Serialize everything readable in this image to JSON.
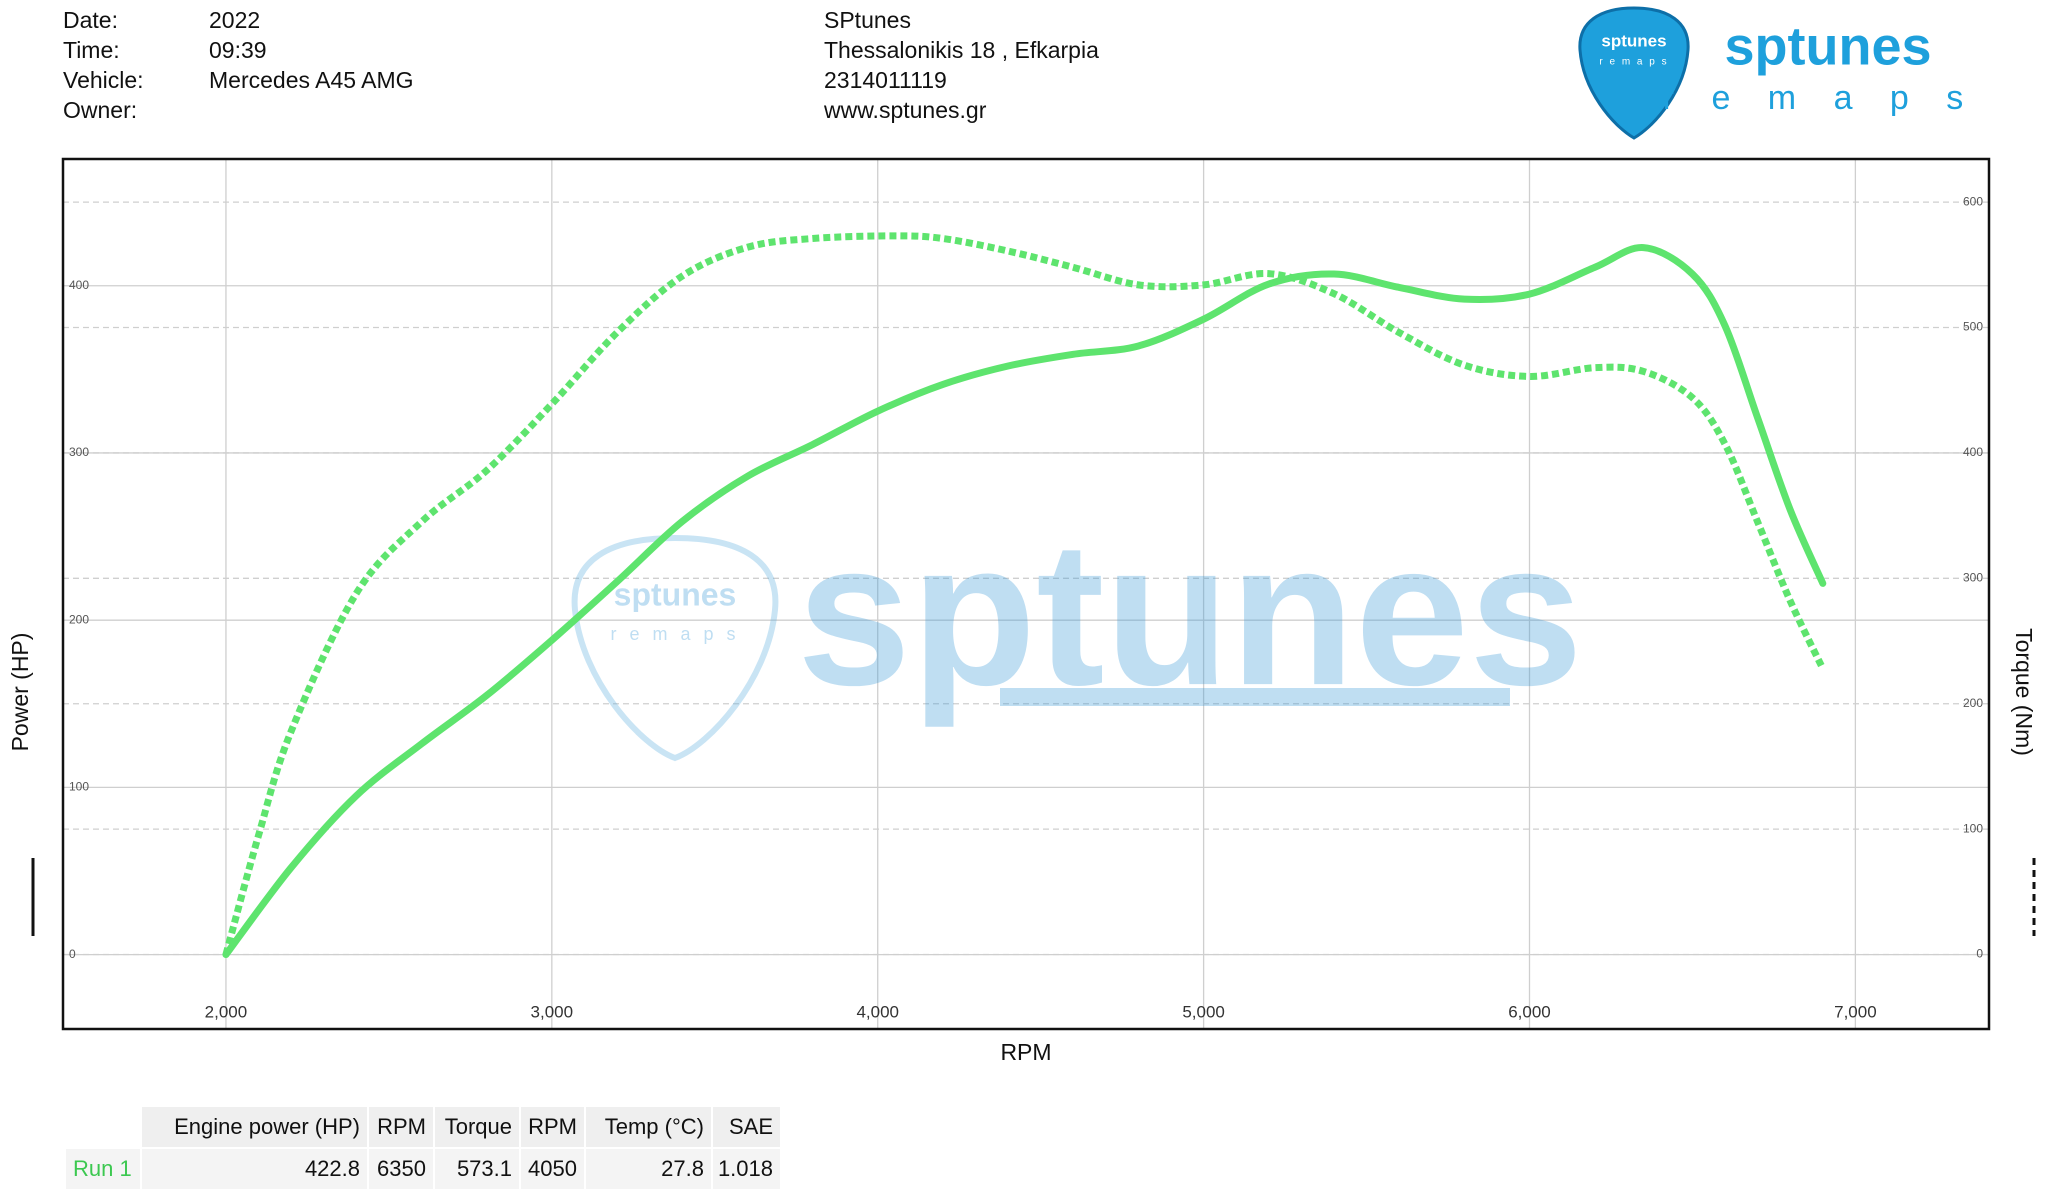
{
  "header": {
    "labels": [
      "Date:",
      "Time:",
      "Vehicle:",
      "Owner:"
    ],
    "values": [
      "2022",
      "09:39",
      "Mercedes A45 AMG"
    ],
    "company": [
      "SPtunes",
      "Thessalonikis 18 , Efkarpia",
      "2314011119",
      "www.sptunes.gr"
    ]
  },
  "logo": {
    "name": "sptunes",
    "tagline": "r e m a p s"
  },
  "chart_data": {
    "type": "line",
    "x_label": "RPM",
    "y_label": "Power (HP)",
    "y2_label": "Torque (Nm)",
    "xlim": [
      1500,
      7410
    ],
    "ylim": [
      -44.5,
      475.8
    ],
    "y2lim": [
      -59.4,
      634.4
    ],
    "xticks": [
      {
        "value": 2000,
        "label": "2,000"
      },
      {
        "value": 3000,
        "label": "3,000"
      },
      {
        "value": 4000,
        "label": "4,000"
      },
      {
        "value": 5000,
        "label": "5,000"
      },
      {
        "value": 6000,
        "label": "6,000"
      },
      {
        "value": 7000,
        "label": "7,000"
      }
    ],
    "yticks": [
      0,
      100,
      200,
      300,
      400
    ],
    "y2ticks": [
      0,
      100,
      200,
      300,
      400,
      500,
      600
    ],
    "grid": true,
    "series": [
      {
        "name": "Engine power (HP)",
        "color": "#5ee46e",
        "line_style": "solid",
        "axis": "y",
        "x": [
          2000,
          2200,
          2400,
          2600,
          2800,
          3000,
          3200,
          3400,
          3600,
          3800,
          4000,
          4200,
          4400,
          4600,
          4800,
          5000,
          5200,
          5400,
          5600,
          5800,
          6000,
          6200,
          6350,
          6500,
          6600,
          6700,
          6800,
          6900
        ],
        "values": [
          0,
          52,
          95,
          126,
          155,
          188,
          223,
          259,
          286,
          305,
          325,
          341,
          352,
          359,
          364,
          380,
          401,
          407,
          399,
          392,
          395,
          411,
          422.8,
          407,
          376,
          321,
          266,
          222
        ]
      },
      {
        "name": "Torque",
        "color": "#5ee46e",
        "line_style": "dashed",
        "axis": "y2",
        "x": [
          2000,
          2100,
          2200,
          2400,
          2600,
          2800,
          3000,
          3200,
          3400,
          3600,
          3800,
          4050,
          4200,
          4400,
          4600,
          4800,
          5000,
          5200,
          5400,
          5600,
          5800,
          6000,
          6200,
          6350,
          6500,
          6600,
          6700,
          6800,
          6900
        ],
        "values": [
          0,
          95,
          178,
          288,
          345,
          386,
          439,
          496,
          541,
          564,
          571,
          573.1,
          571,
          561,
          548,
          534,
          534,
          543,
          527,
          496,
          470,
          461,
          468,
          465,
          444,
          407,
          345,
          282,
          228
        ]
      }
    ]
  },
  "table": {
    "header": [
      "Engine power (HP)",
      "RPM",
      "Torque",
      "RPM",
      "Temp (°C)",
      "SAE"
    ],
    "rows": [
      [
        "Run 1",
        "422.8",
        "6350",
        "573.1",
        "4050",
        "27.8",
        "1.018"
      ]
    ]
  }
}
